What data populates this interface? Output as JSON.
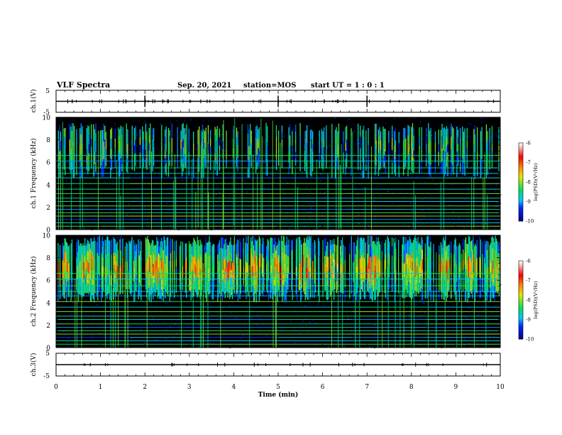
{
  "header": {
    "title": "VLF Spectra",
    "date": "Sep. 20, 2021",
    "station": "station=MOS",
    "start": "start  UT =  1 : 0  : 1"
  },
  "chart_data": {
    "type": "heatmap",
    "xlabel": "Time  (min)",
    "xlim": [
      0,
      10
    ],
    "x_ticks": [
      "0",
      "1",
      "2",
      "3",
      "4",
      "5",
      "6",
      "7",
      "8",
      "9",
      "10"
    ],
    "panels": [
      {
        "id": "ch1_wave",
        "type": "line",
        "ylabel": "ch.1(V)",
        "ylim": [
          -5,
          5
        ],
        "y_ticks": [
          "5",
          "-5"
        ],
        "baseline": 0
      },
      {
        "id": "ch1_spec",
        "type": "heatmap",
        "ylabel": "ch.1  Frequency  (kHz)",
        "ylim": [
          0,
          10
        ],
        "y_ticks": [
          "0",
          "2",
          "4",
          "6",
          "8",
          "10"
        ],
        "emission_band_khz": [
          4.5,
          9.5
        ],
        "colorbar": {
          "label": "log(PSD)(V²/Hz)",
          "range": [
            -10,
            -6
          ],
          "ticks": [
            "-6",
            "-7",
            "-8",
            "-9",
            "-10"
          ]
        }
      },
      {
        "id": "ch2_spec",
        "type": "heatmap",
        "ylabel": "ch.2  Frequency  (kHz)",
        "ylim": [
          0,
          10
        ],
        "y_ticks": [
          "0",
          "2",
          "4",
          "6",
          "8",
          "10"
        ],
        "emission_band_khz": [
          4.0,
          10.0
        ],
        "colorbar": {
          "label": "log(PSD)(V²/Hz)",
          "range": [
            -10,
            -6
          ],
          "ticks": [
            "-6",
            "-7",
            "-8",
            "-9",
            "-10"
          ]
        }
      },
      {
        "id": "ch3_wave",
        "type": "line",
        "ylabel": "ch.3(V)",
        "ylim": [
          -5,
          5
        ],
        "y_ticks": [
          "5",
          "-5"
        ],
        "baseline": 0
      }
    ],
    "colors": {
      "low": "#00008c",
      "mid": "#00dc64",
      "high": "#ff0000",
      "top": "#ffffff"
    }
  }
}
